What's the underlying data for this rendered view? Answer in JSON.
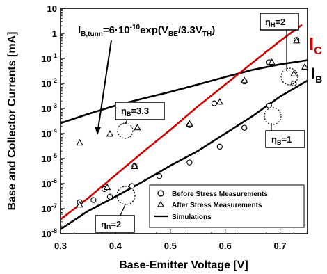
{
  "chart_data": {
    "type": "scatter",
    "xlabel": "Base-Emitter Voltage [V]",
    "ylabel": "Base and Collector Currents [mA]",
    "xlim": [
      0.3,
      0.75
    ],
    "ylim_log10": [
      -8,
      1
    ],
    "x_ticks": [
      "0.3",
      "0.4",
      "0.5",
      "0.6",
      "0.7"
    ],
    "y_ticks": [
      {
        "base": "10",
        "exp": "-8"
      },
      {
        "base": "10",
        "exp": "-7"
      },
      {
        "base": "10",
        "exp": "-6"
      },
      {
        "base": "10",
        "exp": "-5"
      },
      {
        "base": "10",
        "exp": "-4"
      },
      {
        "base": "10",
        "exp": "-3"
      },
      {
        "base": "10",
        "exp": "-2"
      },
      {
        "base": "10",
        "exp": "-1"
      },
      {
        "base": "1",
        "exp": ""
      },
      {
        "base": "10",
        "exp": ""
      }
    ],
    "log_scale_y": true,
    "grid": false,
    "legend_placement": "bottom-right",
    "legend": [
      {
        "marker": "circle",
        "label": "Before Stress Measurements"
      },
      {
        "marker": "triangle",
        "label": "After Stress Measurements"
      },
      {
        "marker": "line",
        "label": "Simulations"
      }
    ],
    "series": [
      {
        "name": "I_B",
        "kind": "simulation",
        "color": "#000000",
        "points": [
          [
            0.3,
            1.5e-08
          ],
          [
            0.35,
            8e-08
          ],
          [
            0.4,
            3e-07
          ],
          [
            0.45,
            1.2e-06
          ],
          [
            0.5,
            5.2e-06
          ],
          [
            0.55,
            2e-05
          ],
          [
            0.6,
            0.0001
          ],
          [
            0.65,
            0.0005
          ],
          [
            0.7,
            0.003
          ],
          [
            0.75,
            0.013
          ]
        ]
      },
      {
        "name": "I_B",
        "kind": "simulation",
        "color": "#000000",
        "points": [
          [
            0.3,
            0.00026
          ],
          [
            0.35,
            0.0006
          ],
          [
            0.4,
            0.0013
          ],
          [
            0.45,
            0.0025
          ],
          [
            0.5,
            0.0046
          ],
          [
            0.55,
            0.009
          ],
          [
            0.6,
            0.018
          ],
          [
            0.65,
            0.035
          ],
          [
            0.7,
            0.058
          ],
          [
            0.75,
            0.085
          ]
        ]
      },
      {
        "name": "I_C",
        "kind": "simulation",
        "color": "#cc0000",
        "points": [
          [
            0.3,
            3.7e-08
          ],
          [
            0.35,
            2.6e-07
          ],
          [
            0.4,
            2.2e-06
          ],
          [
            0.45,
            1.8e-05
          ],
          [
            0.5,
            0.00014
          ],
          [
            0.55,
            0.0012
          ],
          [
            0.6,
            0.009
          ],
          [
            0.65,
            0.068
          ],
          [
            0.7,
            0.5
          ],
          [
            0.74,
            2.2
          ]
        ]
      },
      {
        "name": "Before Stress Measurements",
        "kind": "measurement",
        "marker": "circle",
        "points": [
          [
            0.335,
            1.8e-07
          ],
          [
            0.36,
            2.2e-07
          ],
          [
            0.39,
            3e-07
          ],
          [
            0.43,
            8e-07
          ],
          [
            0.48,
            2e-06
          ],
          [
            0.535,
            7e-06
          ],
          [
            0.59,
            3e-05
          ],
          [
            0.635,
            0.00017
          ],
          [
            0.68,
            0.0013
          ],
          [
            0.725,
            0.01
          ],
          [
            0.38,
            6e-07
          ],
          [
            0.435,
            5e-06
          ],
          [
            0.535,
            0.00022
          ],
          [
            0.58,
            0.0016
          ],
          [
            0.635,
            0.012
          ],
          [
            0.68,
            0.07
          ],
          [
            0.73,
            0.55
          ]
        ]
      },
      {
        "name": "After Stress Measurements",
        "kind": "measurement",
        "marker": "triangle",
        "points": [
          [
            0.335,
            1.4e-07
          ],
          [
            0.335,
            4.2e-05
          ],
          [
            0.385,
            7e-07
          ],
          [
            0.39,
            9.5e-05
          ],
          [
            0.435,
            4.8e-06
          ],
          [
            0.44,
            0.00017
          ],
          [
            0.535,
            0.00024
          ],
          [
            0.59,
            0.0018
          ],
          [
            0.635,
            0.013
          ],
          [
            0.685,
            0.07
          ],
          [
            0.73,
            0.5
          ],
          [
            0.725,
            0.024
          ],
          [
            0.745,
            0.045
          ]
        ]
      }
    ],
    "annotations": {
      "formula": {
        "base": "I",
        "sub": "B,tunn",
        "text": "=6·10",
        "exp": "-10",
        "rest": "exp(V",
        "sub2": "BE",
        "rest2": "/3.3V",
        "sub3": "TH",
        "end": ")"
      },
      "eta_b_33": {
        "base": "η",
        "sub": "B",
        "val": "=3.3"
      },
      "eta_h_2": {
        "base": "η",
        "sub": "H",
        "val": "=2"
      },
      "eta_b_1": {
        "base": "η",
        "sub": "B",
        "val": "=1"
      },
      "eta_b_2": {
        "base": "η",
        "sub": "B",
        "val": "=2"
      },
      "ic_label": {
        "base": "I",
        "sub": "C",
        "color": "#cc0000"
      },
      "ib_label": {
        "base": "I",
        "sub": "B",
        "color": "#000000"
      }
    }
  }
}
